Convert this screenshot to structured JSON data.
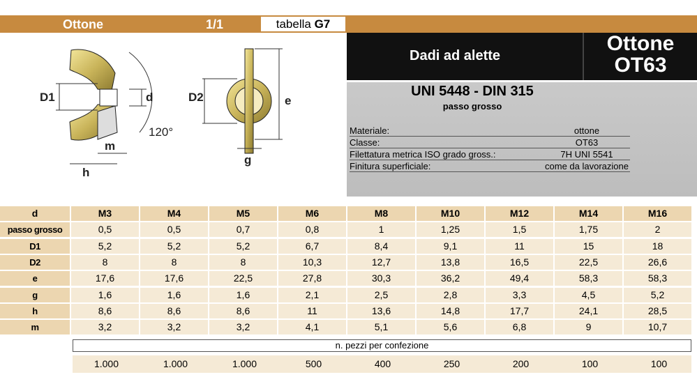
{
  "header": {
    "material": "Ottone",
    "page": "1/1",
    "table_label": "tabella",
    "table_code": "G7"
  },
  "title_box": {
    "title": "Dadi ad alette",
    "material": "Ottone",
    "grade": "OT63"
  },
  "spec": {
    "standard": "UNI 5448 - DIN 315",
    "thread": "passo grosso",
    "rows": [
      [
        "Materiale:",
        "ottone"
      ],
      [
        "Classe:",
        "OT63"
      ],
      [
        "Filettatura metrica ISO grado gross.:",
        "7H UNI 5541"
      ],
      [
        "Finitura superficiale:",
        "come da lavorazione"
      ]
    ]
  },
  "drawing": {
    "labels": [
      "D1",
      "d",
      "m",
      "h",
      "120°",
      "D2",
      "e",
      "g"
    ]
  },
  "table": {
    "header": [
      "d",
      "M3",
      "M4",
      "M5",
      "M6",
      "M8",
      "M10",
      "M12",
      "M14",
      "M16"
    ],
    "rows": [
      [
        "passo grosso",
        "0,5",
        "0,5",
        "0,7",
        "0,8",
        "1",
        "1,25",
        "1,5",
        "1,75",
        "2"
      ],
      [
        "D1",
        "5,2",
        "5,2",
        "5,2",
        "6,7",
        "8,4",
        "9,1",
        "11",
        "15",
        "18"
      ],
      [
        "D2",
        "8",
        "8",
        "8",
        "10,3",
        "12,7",
        "13,8",
        "16,5",
        "22,5",
        "26,6"
      ],
      [
        "e",
        "17,6",
        "17,6",
        "22,5",
        "27,8",
        "30,3",
        "36,2",
        "49,4",
        "58,3",
        "58,3"
      ],
      [
        "g",
        "1,6",
        "1,6",
        "1,6",
        "2,1",
        "2,5",
        "2,8",
        "3,3",
        "4,5",
        "5,2"
      ],
      [
        "h",
        "8,6",
        "8,6",
        "8,6",
        "11",
        "13,6",
        "14,8",
        "17,7",
        "24,1",
        "28,5"
      ],
      [
        "m",
        "3,2",
        "3,2",
        "3,2",
        "4,1",
        "5,1",
        "5,6",
        "6,8",
        "9",
        "10,7"
      ]
    ]
  },
  "packaging": {
    "label": "n. pezzi per confezione",
    "values": [
      "1.000",
      "1.000",
      "1.000",
      "500",
      "400",
      "250",
      "200",
      "100",
      "100"
    ]
  }
}
